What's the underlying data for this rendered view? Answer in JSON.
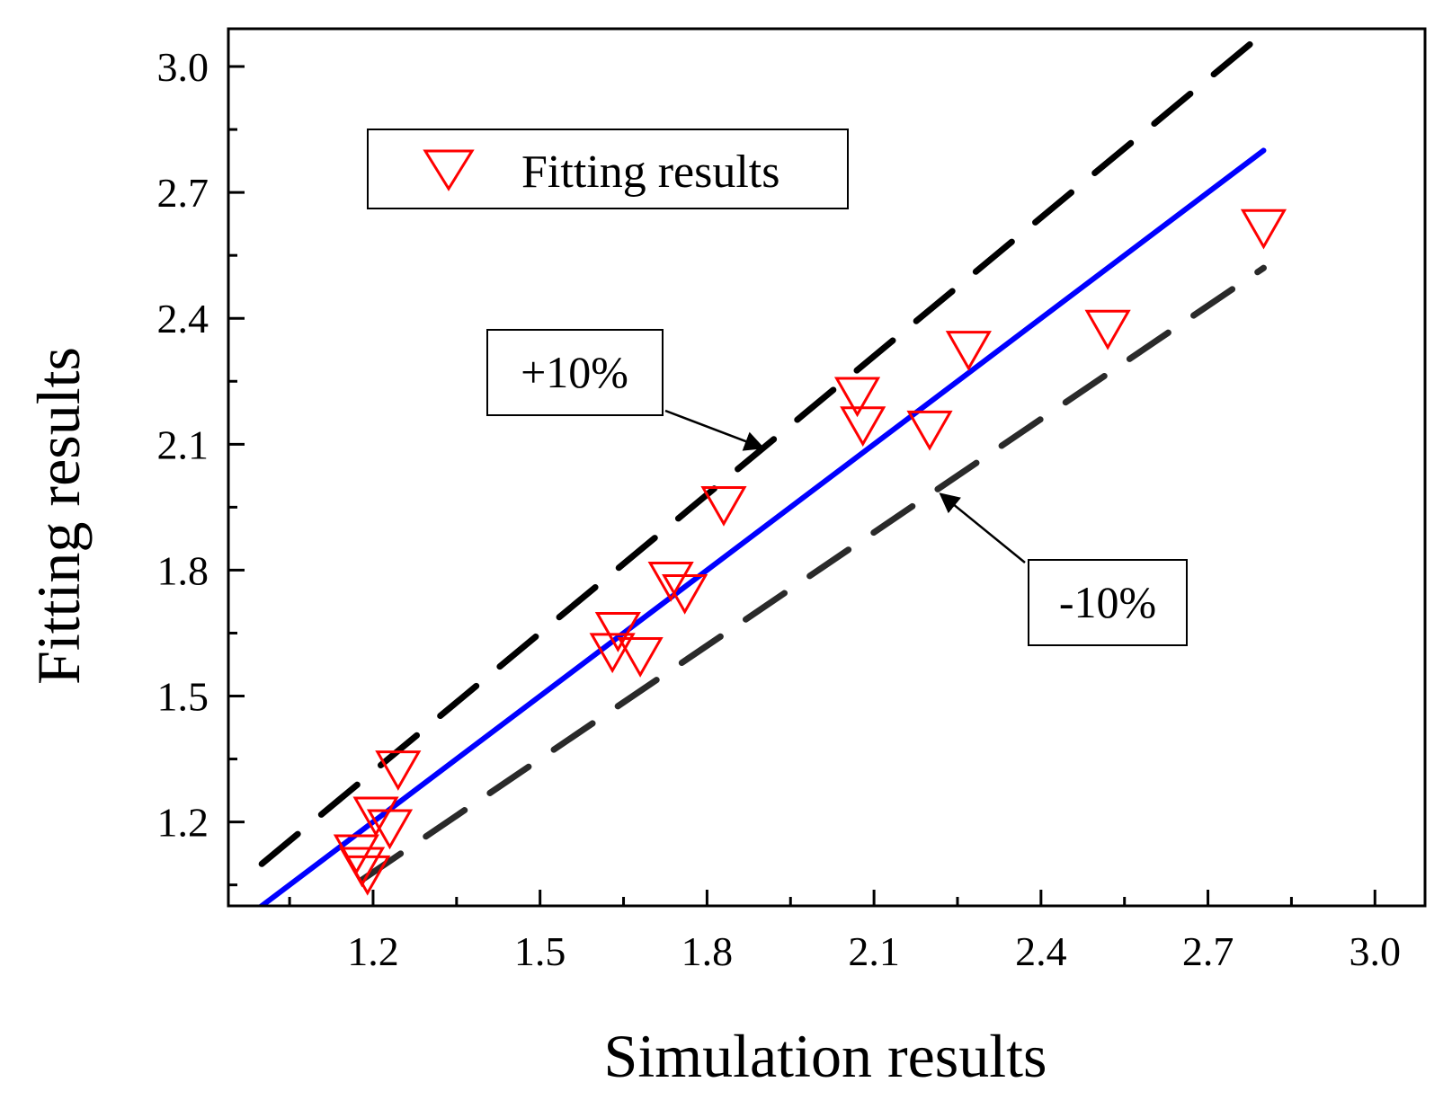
{
  "chart_data": {
    "type": "scatter",
    "xlabel": "Simulation results",
    "ylabel": "Fitting results",
    "xlim": [
      0.94,
      3.09
    ],
    "ylim": [
      1.0,
      3.09
    ],
    "xticks": [
      1.2,
      1.5,
      1.8,
      2.1,
      2.4,
      2.7,
      3.0
    ],
    "yticks": [
      1.2,
      1.5,
      1.8,
      2.1,
      2.4,
      2.7,
      3.0
    ],
    "xtick_labels": [
      "1.2",
      "1.5",
      "1.8",
      "2.1",
      "2.4",
      "2.7",
      "3.0"
    ],
    "ytick_labels": [
      "1.2",
      "1.5",
      "1.8",
      "2.1",
      "2.4",
      "2.7",
      "3.0"
    ],
    "series": [
      {
        "name": "Fitting results",
        "marker": "triangle-down",
        "color": "#ff0000",
        "x": [
          1.17,
          1.18,
          1.19,
          1.205,
          1.23,
          1.245,
          1.63,
          1.64,
          1.68,
          1.735,
          1.76,
          1.83,
          2.07,
          2.08,
          2.2,
          2.27,
          2.52,
          2.8
        ],
        "y": [
          1.13,
          1.1,
          1.08,
          1.22,
          1.19,
          1.33,
          1.61,
          1.66,
          1.6,
          1.78,
          1.75,
          1.96,
          2.22,
          2.15,
          2.14,
          2.33,
          2.38,
          2.62
        ]
      }
    ],
    "lines": [
      {
        "name": "y = x",
        "style": "solid",
        "color": "#0000ff",
        "x": [
          0.94,
          2.8
        ],
        "y": [
          0.94,
          2.8
        ]
      },
      {
        "name": "+10%",
        "style": "dashed",
        "color": "#000000",
        "x": [
          1.0,
          2.8
        ],
        "y": [
          1.1,
          3.08
        ]
      },
      {
        "name": "-10%",
        "style": "dashed",
        "color": "#2a2a2a",
        "x": [
          1.18,
          2.8
        ],
        "y": [
          1.062,
          2.52
        ]
      }
    ],
    "legend": {
      "label": "Fitting results",
      "position": "top-left"
    },
    "annotations": [
      {
        "text": "+10%",
        "arrow_to_line": "+10%",
        "arrow_target": [
          1.91,
          2.1
        ]
      },
      {
        "text": "-10%",
        "arrow_to_line": "-10%",
        "arrow_target": [
          2.21,
          1.99
        ]
      }
    ]
  }
}
